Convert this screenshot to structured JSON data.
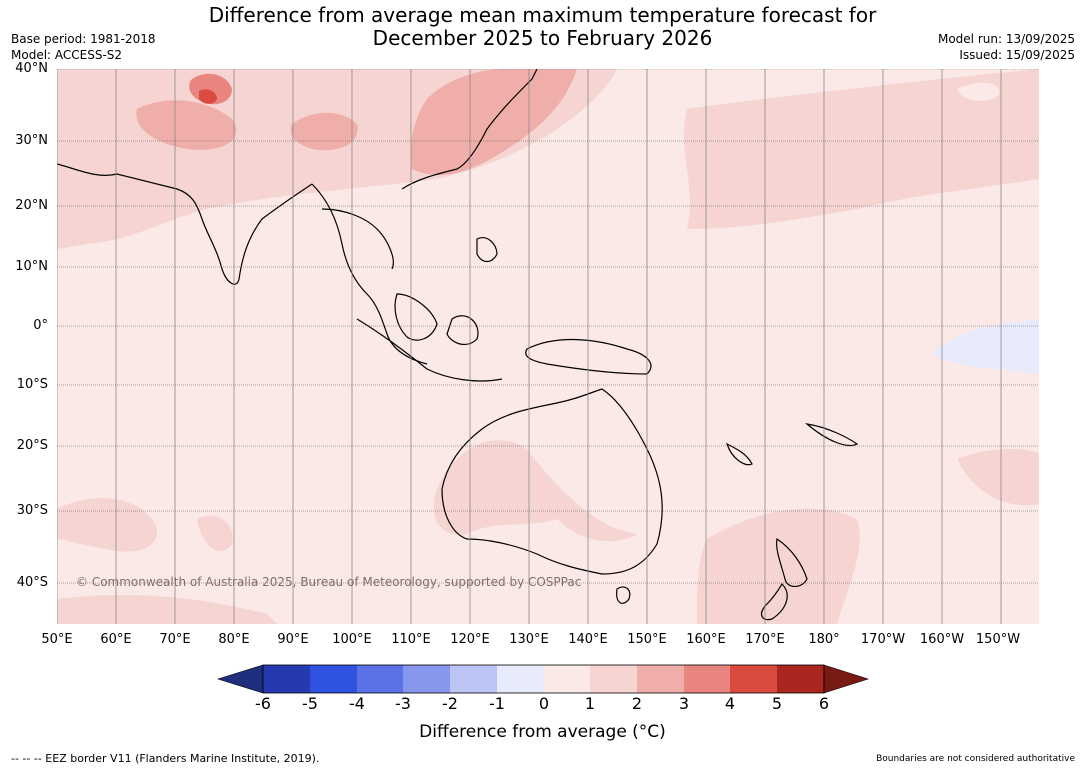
{
  "title_lines": [
    "Difference from average mean maximum temperature forecast for",
    "December 2025 to February 2026"
  ],
  "meta_left": [
    "Base period: 1981-2018",
    "Model: ACCESS-S2"
  ],
  "meta_right": [
    "Model run: 13/09/2025",
    "Issued: 15/09/2025"
  ],
  "lat_labels": [
    "40°N",
    "30°N",
    "20°N",
    "10°N",
    "0°",
    "10°S",
    "20°S",
    "30°S",
    "40°S"
  ],
  "lon_labels": [
    "50°E",
    "60°E",
    "70°E",
    "80°E",
    "90°E",
    "100°E",
    "110°E",
    "120°E",
    "130°E",
    "140°E",
    "150°E",
    "160°E",
    "170°E",
    "180°",
    "170°W",
    "160°W",
    "150°W"
  ],
  "copyright": "© Commonwealth of Australia 2025, Bureau of Meteorology, supported by COSPPac",
  "colorbar": {
    "ticks": [
      "-6",
      "-5",
      "-4",
      "-3",
      "-2",
      "-1",
      "0",
      "1",
      "2",
      "3",
      "4",
      "5",
      "6"
    ],
    "colors": [
      "#1f2f7e",
      "#263ab0",
      "#3052e0",
      "#5b73e6",
      "#8797ec",
      "#bcc4f3",
      "#e8ebfb",
      "#fbe9e7",
      "#f5d4d1",
      "#efaeaa",
      "#e8857e",
      "#db4a3e",
      "#a9271f",
      "#7a1a14"
    ],
    "label": "Difference from average (°C)"
  },
  "footer_left": "-- -- -- EEZ border V11 (Flanders Marine Institute, 2019).",
  "footer_right": "Boundaries are not considered authoritative"
}
